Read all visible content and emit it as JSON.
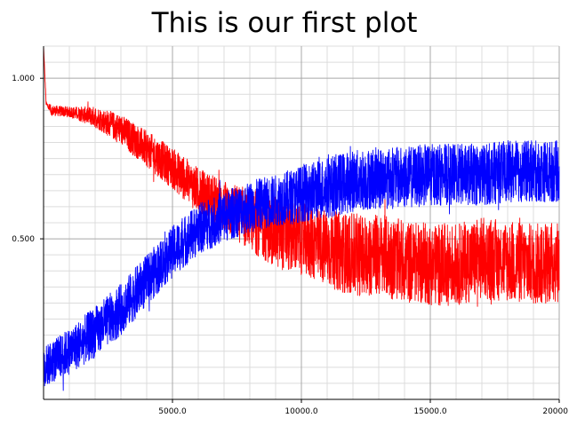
{
  "chart_data": {
    "type": "line",
    "title": "This is our first plot",
    "xlabel": "",
    "ylabel": "",
    "xlim": [
      0,
      20000
    ],
    "ylim": [
      0,
      1.1
    ],
    "grid": true,
    "x_ticks": [
      {
        "value": 5000,
        "label": "5000.0"
      },
      {
        "value": 10000,
        "label": "10000.0"
      },
      {
        "value": 15000,
        "label": "15000.0"
      },
      {
        "value": 20000,
        "label": "20000"
      }
    ],
    "y_ticks": [
      {
        "value": 0.5,
        "label": "0.500"
      },
      {
        "value": 1.0,
        "label": "1.000"
      }
    ],
    "series": [
      {
        "color": "#ff0000",
        "x": [
          0,
          100,
          300,
          1000,
          2000,
          3000,
          4000,
          5000,
          6000,
          7000,
          8000,
          9000,
          10000,
          11000,
          12000,
          13000,
          14000,
          15000,
          16000,
          17000,
          18000,
          19000,
          20000
        ],
        "y": [
          1.1,
          0.92,
          0.9,
          0.895,
          0.88,
          0.84,
          0.78,
          0.72,
          0.65,
          0.6,
          0.56,
          0.52,
          0.5,
          0.47,
          0.45,
          0.45,
          0.43,
          0.42,
          0.42,
          0.44,
          0.43,
          0.42,
          0.43
        ],
        "noise": [
          0,
          0.005,
          0.01,
          0.01,
          0.02,
          0.03,
          0.035,
          0.04,
          0.045,
          0.05,
          0.06,
          0.07,
          0.07,
          0.075,
          0.08,
          0.08,
          0.08,
          0.08,
          0.08,
          0.08,
          0.08,
          0.08,
          0.08
        ]
      },
      {
        "color": "#0000ff",
        "x": [
          0,
          1000,
          2000,
          3000,
          4000,
          5000,
          6000,
          7000,
          8000,
          9000,
          10000,
          11000,
          12000,
          13000,
          14000,
          15000,
          16000,
          17000,
          18000,
          19000,
          20000
        ],
        "y": [
          0.1,
          0.15,
          0.21,
          0.28,
          0.37,
          0.46,
          0.53,
          0.57,
          0.6,
          0.62,
          0.64,
          0.66,
          0.68,
          0.69,
          0.69,
          0.7,
          0.7,
          0.7,
          0.71,
          0.71,
          0.71
        ],
        "noise": [
          0.04,
          0.045,
          0.05,
          0.05,
          0.05,
          0.05,
          0.05,
          0.05,
          0.05,
          0.05,
          0.055,
          0.06,
          0.06,
          0.06,
          0.06,
          0.06,
          0.06,
          0.06,
          0.06,
          0.06,
          0.06
        ]
      }
    ]
  }
}
